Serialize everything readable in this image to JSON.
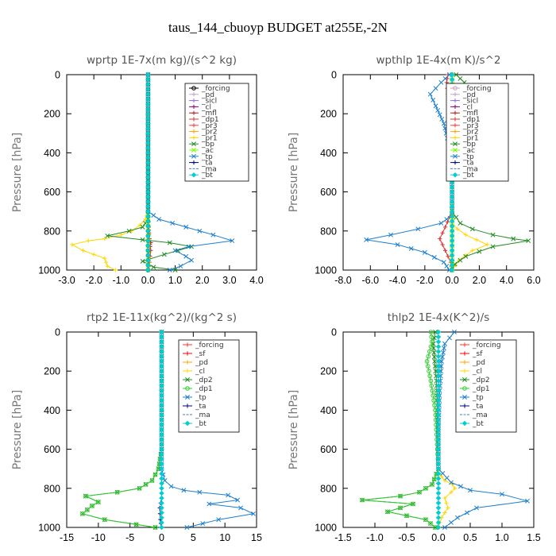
{
  "figure_title": "taus_144_cbuoyp  BUDGET at255E,-2N",
  "chart_data": [
    {
      "type": "line",
      "title": "wprtp  1E-7x(m kg)/(s^2 kg)",
      "ylabel": "Pressure  [hPa]",
      "xlim": [
        -3.0,
        4.0
      ],
      "ylim": [
        1000,
        0
      ],
      "xticks": [
        "-3.0",
        "-2.0",
        "-1.0",
        "0.0",
        "1.0",
        "2.0",
        "3.0",
        "4.0"
      ],
      "yticks": [
        "0",
        "200",
        "400",
        "600",
        "800",
        "1000"
      ],
      "grid": false,
      "legend_position": "upper-right",
      "series": [
        {
          "name": "_forcing",
          "color": "#000000",
          "marker": "o",
          "x": [
            0,
            0
          ],
          "y": [
            0,
            1000
          ]
        },
        {
          "name": "_pd",
          "color": "#c8a2c8",
          "marker": "+",
          "x": [
            0,
            0
          ],
          "y": [
            0,
            1000
          ]
        },
        {
          "name": "_sicl",
          "color": "#9370db",
          "marker": "+",
          "x": [
            0,
            0
          ],
          "y": [
            0,
            1000
          ]
        },
        {
          "name": "_cl",
          "color": "#8b008b",
          "marker": "+",
          "x": [
            0,
            0
          ],
          "y": [
            0,
            1000
          ]
        },
        {
          "name": "_mfl",
          "color": "#b22222",
          "marker": "+",
          "x": [
            0,
            0,
            0.02,
            0.05,
            0.1,
            0.05,
            0.02,
            0
          ],
          "y": [
            0,
            700,
            780,
            840,
            860,
            900,
            950,
            1000
          ]
        },
        {
          "name": "_dp1",
          "color": "#e03030",
          "marker": "+",
          "x": [
            0,
            0,
            0.05,
            0.1,
            0.05,
            0
          ],
          "y": [
            0,
            750,
            840,
            900,
            960,
            1000
          ]
        },
        {
          "name": "_pr3",
          "color": "#ff4040",
          "marker": "+",
          "x": [
            0,
            0
          ],
          "y": [
            0,
            1000
          ]
        },
        {
          "name": "_pr2",
          "color": "#ffa500",
          "marker": "+",
          "x": [
            0,
            0
          ],
          "y": [
            0,
            1000
          ]
        },
        {
          "name": "_pr1",
          "color": "#ffd700",
          "marker": "+",
          "x": [
            0,
            0,
            -0.1,
            -0.3,
            -0.6,
            -1.0,
            -1.6,
            -2.2,
            -2.8,
            -2.4,
            -1.6,
            -1.5,
            -1.2
          ],
          "y": [
            0,
            700,
            740,
            770,
            800,
            820,
            840,
            850,
            870,
            900,
            940,
            980,
            1000
          ]
        },
        {
          "name": "_bp",
          "color": "#228b22",
          "marker": "x",
          "x": [
            0,
            0,
            -0.2,
            -0.7,
            -1.5,
            -0.2,
            0.8,
            1.6,
            0.6,
            -0.2,
            0.2,
            1.0
          ],
          "y": [
            0,
            740,
            780,
            800,
            825,
            845,
            860,
            880,
            920,
            955,
            985,
            1000
          ]
        },
        {
          "name": "_ac",
          "color": "#7cfc00",
          "marker": "x",
          "x": [
            0,
            0
          ],
          "y": [
            0,
            1000
          ]
        },
        {
          "name": "_tp",
          "color": "#1e7fcc",
          "marker": "x",
          "x": [
            0,
            0,
            0.4,
            1.4,
            2.4,
            3.1,
            1.5,
            1.0,
            1.4,
            1.6,
            1.2,
            0.8
          ],
          "y": [
            0,
            700,
            740,
            780,
            820,
            850,
            880,
            900,
            930,
            950,
            980,
            1000
          ]
        },
        {
          "name": "_ta",
          "color": "#000080",
          "marker": "+",
          "x": [
            0,
            0
          ],
          "y": [
            0,
            1000
          ]
        },
        {
          "name": "_ma",
          "color": "#4682b4",
          "marker": "-",
          "x": [
            0,
            0
          ],
          "y": [
            0,
            1000
          ]
        },
        {
          "name": "_bt",
          "color": "#00ced1",
          "marker": "D",
          "x": [
            0,
            0
          ],
          "y": [
            0,
            1000
          ]
        }
      ]
    },
    {
      "type": "line",
      "title": "wpthlp  1E-4x(m K)/s^2",
      "ylabel": "Pressure  [hPa]",
      "xlim": [
        -8.0,
        6.0
      ],
      "ylim": [
        1000,
        0
      ],
      "xticks": [
        "-8.0",
        "-6.0",
        "-4.0",
        "-2.0",
        "0.0",
        "2.0",
        "4.0",
        "6.0"
      ],
      "yticks": [
        "0",
        "200",
        "400",
        "600",
        "800",
        "1000"
      ],
      "grid": false,
      "legend_position": "upper-right",
      "series": [
        {
          "name": "_forcing",
          "color": "#c8a2c8",
          "marker": "o",
          "x": [
            0,
            0
          ],
          "y": [
            0,
            1000
          ]
        },
        {
          "name": "_pd",
          "color": "#c8a2c8",
          "marker": "+",
          "x": [
            0,
            0
          ],
          "y": [
            0,
            1000
          ]
        },
        {
          "name": "_sicl",
          "color": "#9370db",
          "marker": "+",
          "x": [
            0,
            0
          ],
          "y": [
            0,
            1000
          ]
        },
        {
          "name": "_cl",
          "color": "#8b008b",
          "marker": "+",
          "x": [
            0,
            0
          ],
          "y": [
            0,
            1000
          ]
        },
        {
          "name": "_mfl",
          "color": "#b22222",
          "marker": "+",
          "x": [
            0,
            0
          ],
          "y": [
            0,
            1000
          ]
        },
        {
          "name": "_dp1",
          "color": "#e03030",
          "marker": "+",
          "x": [
            -0.3,
            -0.4,
            -0.3,
            -0.2,
            -0.1,
            0,
            0,
            -0.5,
            -0.9,
            -0.5,
            -0.1,
            0
          ],
          "y": [
            0,
            40,
            100,
            150,
            250,
            400,
            700,
            780,
            840,
            900,
            960,
            1000
          ]
        },
        {
          "name": "_pr3",
          "color": "#ff4040",
          "marker": "+",
          "x": [
            0,
            0
          ],
          "y": [
            0,
            1000
          ]
        },
        {
          "name": "_pr2",
          "color": "#ffa500",
          "marker": "+",
          "x": [
            0,
            0
          ],
          "y": [
            0,
            1000
          ]
        },
        {
          "name": "_pr1",
          "color": "#ffd700",
          "marker": "+",
          "x": [
            0,
            0,
            0.4,
            1.0,
            1.8,
            2.6,
            1.5,
            0.5,
            0
          ],
          "y": [
            0,
            760,
            790,
            820,
            845,
            870,
            900,
            950,
            1000
          ]
        },
        {
          "name": "_bp",
          "color": "#228b22",
          "marker": "x",
          "x": [
            0.3,
            0.9,
            0.6,
            0.3,
            0,
            0,
            0.6,
            1.5,
            3.0,
            4.5,
            5.6,
            3.0,
            1.0,
            0.2,
            0
          ],
          "y": [
            0,
            40,
            100,
            160,
            250,
            700,
            760,
            790,
            820,
            840,
            850,
            880,
            930,
            970,
            1000
          ]
        },
        {
          "name": "_ac",
          "color": "#7cfc00",
          "marker": "x",
          "x": [
            0,
            0
          ],
          "y": [
            0,
            1000
          ]
        },
        {
          "name": "_tp",
          "color": "#1e7fcc",
          "marker": "x",
          "x": [
            -0.2,
            -0.8,
            -1.6,
            -1.2,
            -0.6,
            -0.1,
            0,
            0,
            -0.8,
            -2.5,
            -4.5,
            -6.3,
            -4.0,
            -2.0,
            -0.6,
            -0.2
          ],
          "y": [
            0,
            40,
            100,
            160,
            250,
            400,
            600,
            720,
            760,
            790,
            820,
            845,
            870,
            910,
            960,
            1000
          ]
        },
        {
          "name": "_ta",
          "color": "#000080",
          "marker": "+",
          "x": [
            0,
            0
          ],
          "y": [
            0,
            1000
          ]
        },
        {
          "name": "_ma",
          "color": "#4682b4",
          "marker": "-",
          "x": [
            0,
            0
          ],
          "y": [
            0,
            1000
          ]
        },
        {
          "name": "_bt",
          "color": "#00ced1",
          "marker": "D",
          "x": [
            0,
            0
          ],
          "y": [
            0,
            1000
          ]
        }
      ]
    },
    {
      "type": "line",
      "title": "rtp2  1E-11x(kg^2)/(kg^2 s)",
      "ylabel": "Pressure  [hPa]",
      "xlim": [
        -15,
        15
      ],
      "ylim": [
        1000,
        0
      ],
      "xticks": [
        "-15",
        "-10",
        "-5",
        "0",
        "5",
        "10",
        "15"
      ],
      "yticks": [
        "0",
        "200",
        "400",
        "600",
        "800",
        "1000"
      ],
      "grid": false,
      "legend_position": "upper-right",
      "series": [
        {
          "name": "_forcing",
          "color": "#ff3030",
          "marker": "+",
          "x": [
            0,
            0
          ],
          "y": [
            0,
            1000
          ]
        },
        {
          "name": "_sf",
          "color": "#ff0000",
          "marker": "+",
          "x": [
            0,
            0
          ],
          "y": [
            0,
            1000
          ]
        },
        {
          "name": "_pd",
          "color": "#ffa500",
          "marker": "+",
          "x": [
            0,
            0
          ],
          "y": [
            0,
            1000
          ]
        },
        {
          "name": "_cl",
          "color": "#ffd700",
          "marker": "+",
          "x": [
            0,
            0
          ],
          "y": [
            0,
            1000
          ]
        },
        {
          "name": "_dp2",
          "color": "#228b22",
          "marker": "x",
          "x": [
            0,
            0,
            -0.5,
            -1.5,
            -3.5,
            -7.0,
            -12.0,
            -10.0,
            -11.0,
            -12.5,
            -9.0,
            -4.0,
            -1.0
          ],
          "y": [
            0,
            600,
            700,
            760,
            800,
            820,
            840,
            870,
            890,
            930,
            960,
            985,
            1000
          ]
        },
        {
          "name": "_dp1",
          "color": "#32cd32",
          "marker": "o",
          "x": [
            0,
            0,
            -0.5,
            -1.5,
            -3.5,
            -7.0,
            -12.0,
            -10.0,
            -11.0,
            -12.5,
            -9.0,
            -4.0,
            -1.0
          ],
          "y": [
            0,
            600,
            700,
            760,
            800,
            820,
            840,
            870,
            890,
            930,
            960,
            985,
            1000
          ]
        },
        {
          "name": "_tp",
          "color": "#1e7fcc",
          "marker": "x",
          "x": [
            0,
            0,
            0.5,
            1.5,
            3.5,
            6.0,
            10.5,
            12.0,
            7.5,
            12.5,
            14.5,
            9.0,
            4.0
          ],
          "y": [
            0,
            700,
            760,
            790,
            810,
            820,
            835,
            860,
            880,
            900,
            930,
            960,
            1000
          ]
        },
        {
          "name": "_ta",
          "color": "#000080",
          "marker": "+",
          "x": [
            0,
            0,
            -0.3,
            -0.2,
            0
          ],
          "y": [
            0,
            850,
            900,
            960,
            1000
          ]
        },
        {
          "name": "_ma",
          "color": "#4682b4",
          "marker": "-",
          "x": [
            0,
            0
          ],
          "y": [
            0,
            1000
          ]
        },
        {
          "name": "_bt",
          "color": "#00ced1",
          "marker": "D",
          "x": [
            0,
            0
          ],
          "y": [
            0,
            1000
          ]
        }
      ]
    },
    {
      "type": "line",
      "title": "thlp2  1E-4x(K^2)/s",
      "ylabel": "Pressure  [hPa]",
      "xlim": [
        -1.5,
        1.5
      ],
      "ylim": [
        1000,
        0
      ],
      "xticks": [
        "-1.5",
        "-1.0",
        "-0.5",
        "0.0",
        "0.5",
        "1.0",
        "1.5"
      ],
      "yticks": [
        "0",
        "200",
        "400",
        "600",
        "800",
        "1000"
      ],
      "grid": false,
      "legend_position": "upper-right",
      "series": [
        {
          "name": "_forcing",
          "color": "#ff3030",
          "marker": "+",
          "x": [
            0,
            0
          ],
          "y": [
            0,
            1000
          ]
        },
        {
          "name": "_sf",
          "color": "#ff0000",
          "marker": "+",
          "x": [
            0,
            0
          ],
          "y": [
            0,
            1000
          ]
        },
        {
          "name": "_pd",
          "color": "#ffa500",
          "marker": "+",
          "x": [
            0,
            0
          ],
          "y": [
            0,
            1000
          ]
        },
        {
          "name": "_cl",
          "color": "#ffd700",
          "marker": "+",
          "x": [
            0,
            0,
            0.1,
            0.22,
            0.26,
            0.2,
            0.1,
            0.15,
            0.05,
            0
          ],
          "y": [
            0,
            720,
            760,
            780,
            800,
            820,
            850,
            900,
            950,
            1000
          ]
        },
        {
          "name": "_dp2",
          "color": "#228b22",
          "marker": "x",
          "x": [
            -0.05,
            -0.08,
            -0.06,
            -0.03,
            0,
            -0.1,
            -0.3,
            -0.6,
            -1.2,
            -0.4,
            -0.8,
            -0.2,
            -0.05
          ],
          "y": [
            0,
            60,
            150,
            250,
            700,
            780,
            820,
            840,
            860,
            880,
            920,
            960,
            1000
          ]
        },
        {
          "name": "_dp1",
          "color": "#32cd32",
          "marker": "o",
          "x": [
            -0.12,
            -0.1,
            -0.18,
            -0.12,
            -0.05,
            0,
            -0.1,
            -0.3,
            -0.6,
            -1.2,
            -0.4,
            -0.8,
            -0.2,
            -0.05
          ],
          "y": [
            0,
            50,
            150,
            250,
            400,
            700,
            780,
            820,
            840,
            860,
            880,
            920,
            960,
            1000
          ]
        },
        {
          "name": "_tp",
          "color": "#1e7fcc",
          "marker": "x",
          "x": [
            0.25,
            0.1,
            0.05,
            0.02,
            0,
            0,
            0.2,
            0.5,
            1.0,
            1.4,
            0.6,
            0.3,
            0.1
          ],
          "y": [
            0,
            60,
            150,
            300,
            500,
            700,
            770,
            810,
            830,
            865,
            900,
            950,
            1000
          ]
        },
        {
          "name": "_ta",
          "color": "#000080",
          "marker": "+",
          "x": [
            0,
            0
          ],
          "y": [
            0,
            1000
          ]
        },
        {
          "name": "_ma",
          "color": "#4682b4",
          "marker": "-",
          "x": [
            0,
            0
          ],
          "y": [
            0,
            1000
          ]
        },
        {
          "name": "_bt",
          "color": "#00ced1",
          "marker": "D",
          "x": [
            0,
            0
          ],
          "y": [
            0,
            1000
          ]
        }
      ]
    }
  ]
}
